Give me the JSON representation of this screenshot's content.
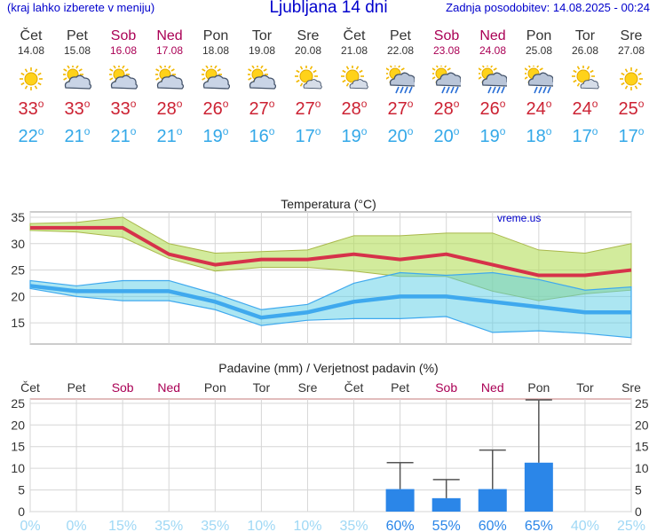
{
  "header": {
    "left_text": "(kraj lahko izberete v meniju)",
    "title": "Ljubljana 14 dni",
    "right_text": "Zadnja posodobitev: 14.08.2025 - 00:24"
  },
  "colors": {
    "weekday": "#333333",
    "weekend": "#aa0055",
    "max_temp": "#cc2233",
    "min_temp": "#33a8e8",
    "precip_bar": "#2b86e8",
    "prob_high": "#2b86e8",
    "prob_low": "#9fd8f5"
  },
  "days": [
    {
      "name": "Čet",
      "date": "14.08",
      "icon": "sun-icon",
      "max": "33",
      "min": "22",
      "weekend": false
    },
    {
      "name": "Pet",
      "date": "15.08",
      "icon": "partly-cloudy-icon",
      "max": "33",
      "min": "21",
      "weekend": false
    },
    {
      "name": "Sob",
      "date": "16.08",
      "icon": "partly-cloudy-icon",
      "max": "33",
      "min": "21",
      "weekend": true
    },
    {
      "name": "Ned",
      "date": "17.08",
      "icon": "partly-cloudy-icon",
      "max": "28",
      "min": "21",
      "weekend": true
    },
    {
      "name": "Pon",
      "date": "18.08",
      "icon": "partly-cloudy-icon",
      "max": "26",
      "min": "19",
      "weekend": false
    },
    {
      "name": "Tor",
      "date": "19.08",
      "icon": "partly-cloudy-icon",
      "max": "27",
      "min": "16",
      "weekend": false
    },
    {
      "name": "Sre",
      "date": "20.08",
      "icon": "sun-cloud-icon",
      "max": "27",
      "min": "17",
      "weekend": false
    },
    {
      "name": "Čet",
      "date": "21.08",
      "icon": "sun-cloud-icon",
      "max": "28",
      "min": "19",
      "weekend": false
    },
    {
      "name": "Pet",
      "date": "22.08",
      "icon": "sun-rain-icon",
      "max": "27",
      "min": "20",
      "weekend": false
    },
    {
      "name": "Sob",
      "date": "23.08",
      "icon": "sun-rain-icon",
      "max": "28",
      "min": "20",
      "weekend": true
    },
    {
      "name": "Ned",
      "date": "24.08",
      "icon": "sun-rain-icon",
      "max": "26",
      "min": "19",
      "weekend": true
    },
    {
      "name": "Pon",
      "date": "25.08",
      "icon": "sun-rain-icon",
      "max": "24",
      "min": "18",
      "weekend": false
    },
    {
      "name": "Tor",
      "date": "26.08",
      "icon": "sun-cloud-icon",
      "max": "24",
      "min": "17",
      "weekend": false
    },
    {
      "name": "Sre",
      "date": "27.08",
      "icon": "sun-icon",
      "max": "25",
      "min": "17",
      "weekend": false
    }
  ],
  "chart_data": [
    {
      "type": "line",
      "title": "Temperatura (°C)",
      "watermark": "vreme.us",
      "ylim": [
        11,
        36
      ],
      "yticks": [
        15,
        20,
        25,
        30,
        35
      ],
      "grid": true,
      "x": [
        "14.08",
        "15.08",
        "16.08",
        "17.08",
        "18.08",
        "19.08",
        "20.08",
        "21.08",
        "22.08",
        "23.08",
        "24.08",
        "25.08",
        "26.08",
        "27.08"
      ],
      "series": [
        {
          "values": [
            33,
            33,
            33,
            28,
            26,
            27,
            27,
            28,
            27,
            28,
            26,
            24,
            24,
            25
          ],
          "band_low": [
            32.5,
            32.2,
            31.2,
            27.2,
            24.8,
            25.5,
            25.5,
            24.8,
            23.8,
            23.8,
            21.0,
            19.2,
            20.5,
            21.2
          ],
          "band_high": [
            33.8,
            34.0,
            35.0,
            30.0,
            28.2,
            28.5,
            28.8,
            31.5,
            31.5,
            32.0,
            32.0,
            28.8,
            28.2,
            30.0
          ]
        },
        {
          "values": [
            22,
            21,
            21,
            21,
            19,
            16,
            17,
            19,
            20,
            20,
            19,
            18,
            17,
            17
          ],
          "band_low": [
            21.5,
            20.0,
            19.2,
            19.2,
            17.5,
            14.5,
            15.5,
            15.8,
            15.8,
            16.2,
            13.2,
            13.5,
            13.0,
            12.2
          ],
          "band_high": [
            23.0,
            22.0,
            23.0,
            23.0,
            20.5,
            17.5,
            18.5,
            22.5,
            24.5,
            24.0,
            24.5,
            23.2,
            21.2,
            21.8
          ]
        }
      ]
    },
    {
      "type": "bar",
      "title": "Padavine (mm) / Verjetnost padavin (%)",
      "categories": [
        "Čet",
        "Pet",
        "Sob",
        "Ned",
        "Pon",
        "Tor",
        "Sre",
        "Čet",
        "Pet",
        "Sob",
        "Ned",
        "Pon",
        "Tor",
        "Sre"
      ],
      "ylim": [
        0,
        26
      ],
      "yticks": [
        0,
        5,
        10,
        15,
        20,
        25
      ],
      "values": [
        0,
        0,
        0,
        0,
        0,
        0,
        0,
        0,
        5.2,
        3.1,
        5.2,
        11.3,
        0,
        0
      ],
      "error_high": [
        0,
        0,
        0,
        0,
        0,
        0,
        0,
        0,
        11.3,
        7.4,
        14.2,
        25.8,
        0,
        0
      ],
      "probability": [
        "0%",
        "0%",
        "15%",
        "35%",
        "35%",
        "10%",
        "10%",
        "35%",
        "60%",
        "55%",
        "60%",
        "65%",
        "40%",
        "25%"
      ]
    }
  ]
}
